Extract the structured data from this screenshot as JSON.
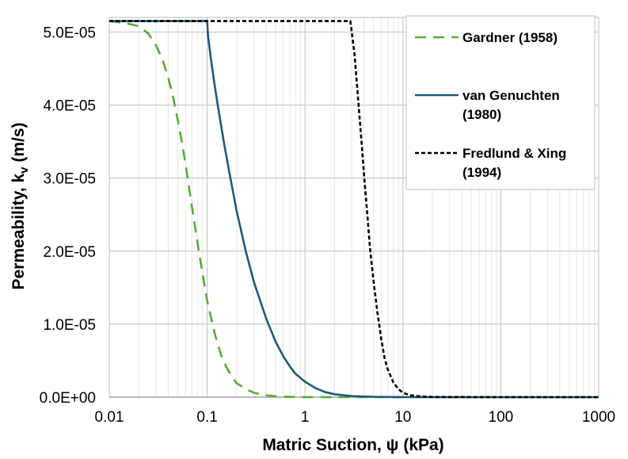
{
  "chart_data": {
    "type": "line",
    "title": "",
    "xlabel": "Matric Suction, ψ (kPa)",
    "ylabel_main": "Permeability, k",
    "ylabel_sub": "v",
    "ylabel_unit": " (m/s)",
    "xscale": "log",
    "xlim": [
      0.01,
      1000
    ],
    "ylim": [
      0,
      5.2e-05
    ],
    "x_ticks": [
      0.01,
      0.1,
      1,
      10,
      100,
      1000
    ],
    "x_tick_labels": [
      "0.01",
      "0.1",
      "1",
      "10",
      "100",
      "1000"
    ],
    "y_ticks": [
      0,
      1e-05,
      2e-05,
      3e-05,
      4e-05,
      5e-05
    ],
    "y_tick_labels": [
      "0.0E+00",
      "1.0E-05",
      "2.0E-05",
      "3.0E-05",
      "4.0E-05",
      "5.0E-05"
    ],
    "grid": true,
    "legend_position": "top-right",
    "series": [
      {
        "name": "Gardner (1958)",
        "legend_lines": [
          "Gardner (1958)"
        ],
        "color": "#5aa83e",
        "style": "dashed",
        "x": [
          0.01,
          0.015,
          0.02,
          0.025,
          0.03,
          0.035,
          0.04,
          0.045,
          0.05,
          0.055,
          0.06,
          0.07,
          0.08,
          0.09,
          0.1,
          0.12,
          0.14,
          0.16,
          0.18,
          0.2,
          0.25,
          0.3,
          0.4,
          0.5,
          0.7,
          1,
          2,
          5,
          10,
          100,
          1000
        ],
        "y": [
          5.15e-05,
          5.12e-05,
          5.08e-05,
          4.98e-05,
          4.82e-05,
          4.62e-05,
          4.38e-05,
          4.1e-05,
          3.8e-05,
          3.5e-05,
          3.2e-05,
          2.6e-05,
          2.1e-05,
          1.68e-05,
          1.32e-05,
          8.6e-06,
          5.6e-06,
          3.9e-06,
          2.8e-06,
          1.9e-06,
          1.1e-06,
          6e-07,
          2.5e-07,
          1.2e-07,
          4e-08,
          1e-08,
          0,
          0,
          0,
          0,
          0
        ]
      },
      {
        "name": "van Genuchten (1980)",
        "legend_lines": [
          "van Genuchten",
          "(1980)"
        ],
        "color": "#1f5a7a",
        "style": "solid",
        "x": [
          0.01,
          0.1,
          0.1005,
          0.102,
          0.11,
          0.12,
          0.13,
          0.15,
          0.17,
          0.2,
          0.25,
          0.3,
          0.4,
          0.5,
          0.6,
          0.7,
          0.8,
          1,
          1.3,
          1.6,
          2,
          3,
          5,
          10,
          100,
          1000
        ],
        "y": [
          5.15e-05,
          5.15e-05,
          5.1e-05,
          4.95e-05,
          4.6e-05,
          4.25e-05,
          3.95e-05,
          3.45e-05,
          3.05e-05,
          2.55e-05,
          1.98e-05,
          1.58e-05,
          1.08e-05,
          7.6e-06,
          5.6e-06,
          4.2e-06,
          3.2e-06,
          2.1e-06,
          1.2e-06,
          7e-07,
          4e-07,
          1.5e-07,
          5e-08,
          1e-08,
          0,
          0
        ]
      },
      {
        "name": "Fredlund & Xing (1994)",
        "legend_lines": [
          "Fredlund & Xing",
          "(1994)"
        ],
        "color": "#000000",
        "style": "dotted",
        "x": [
          0.01,
          2.9,
          3.0,
          3.2,
          3.5,
          3.8,
          4.0,
          4.3,
          4.6,
          5.0,
          5.5,
          6.0,
          6.5,
          7.0,
          8.0,
          9.0,
          10,
          12,
          15,
          20,
          100,
          1000
        ],
        "y": [
          5.15e-05,
          5.15e-05,
          5e-05,
          4.7e-05,
          4.05e-05,
          3.45e-05,
          3.05e-05,
          2.55e-05,
          2.05e-05,
          1.6e-05,
          1.15e-05,
          8e-06,
          5.3e-06,
          3.8e-06,
          2e-06,
          1.1e-06,
          6e-07,
          2.5e-07,
          1e-07,
          3e-08,
          0,
          0
        ]
      }
    ]
  }
}
